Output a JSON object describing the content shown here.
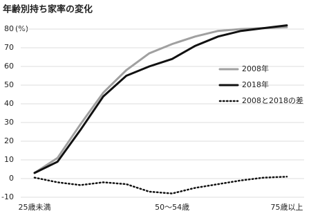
{
  "chart_data": {
    "type": "line",
    "title": "年齢別持ち家率の変化",
    "unit": "(%)",
    "categories": [
      "25歳未満",
      null,
      null,
      null,
      null,
      null,
      "50〜54歳",
      null,
      null,
      null,
      null,
      "75歳以上"
    ],
    "series": [
      {
        "name": "2008年",
        "color": "#a0a0a0",
        "style": "solid",
        "values": [
          3,
          11,
          29,
          46,
          58,
          67,
          72,
          76,
          79,
          80,
          80.5,
          81
        ]
      },
      {
        "name": "2018年",
        "color": "#111111",
        "style": "solid",
        "values": [
          3,
          9,
          26,
          44,
          55,
          60,
          64,
          71,
          76,
          79,
          80.5,
          82
        ]
      },
      {
        "name": "2008と2018の差",
        "color": "#111111",
        "style": "dotted",
        "values": [
          0.5,
          -2,
          -3.5,
          -2,
          -3,
          -7,
          -8,
          -5,
          -3,
          -1,
          0.5,
          1
        ]
      }
    ],
    "ylim": [
      -10,
      82
    ],
    "yticks": [
      -10,
      0,
      10,
      20,
      30,
      40,
      50,
      60,
      70,
      80
    ],
    "grid": true
  }
}
